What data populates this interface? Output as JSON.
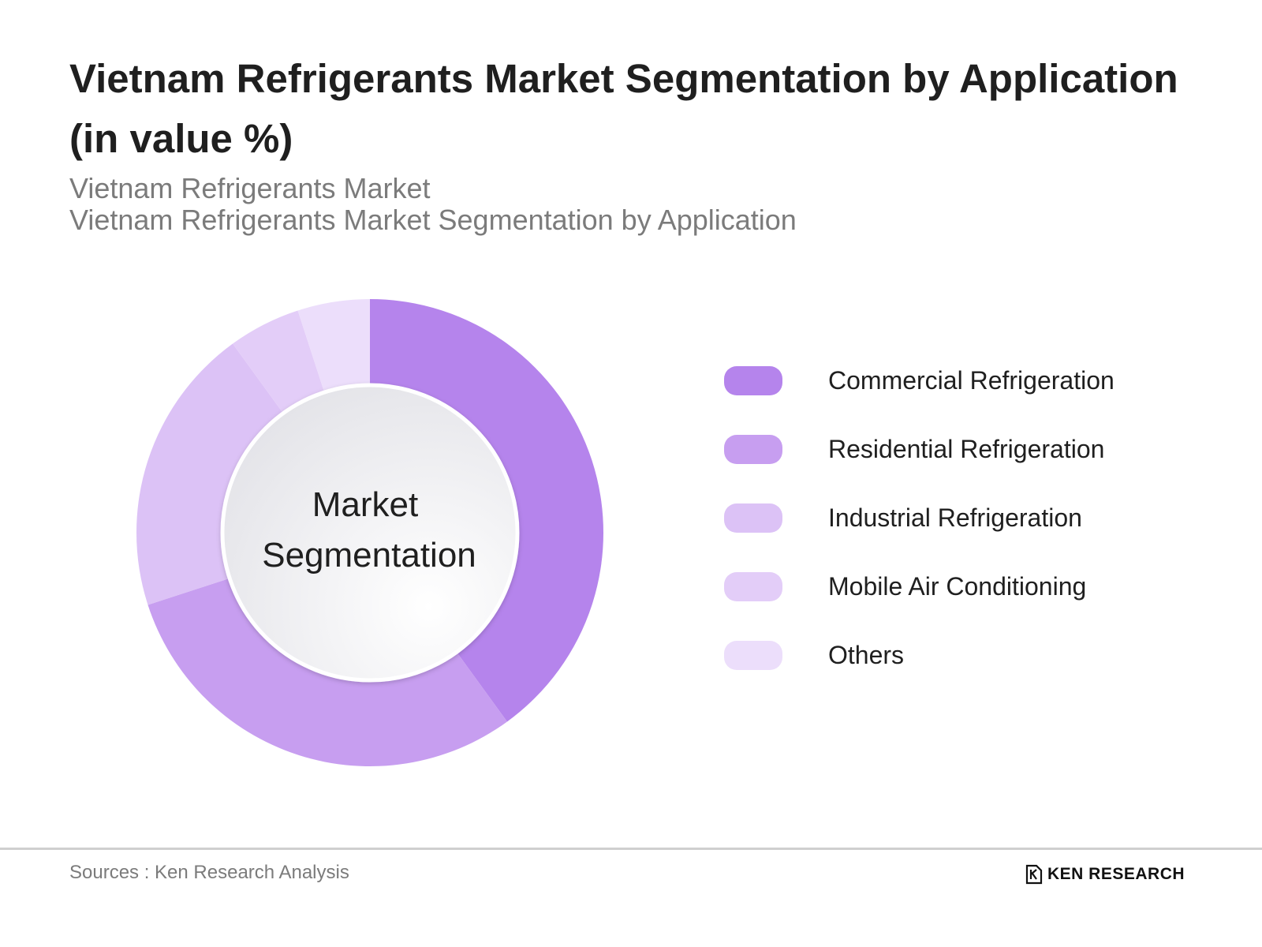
{
  "header": {
    "title": "Vietnam Refrigerants Market Segmentation by Application (in value %)",
    "subtitle_line1": "Vietnam Refrigerants Market",
    "subtitle_line2": "Vietnam Refrigerants Market Segmentation by Application"
  },
  "chart_data": {
    "type": "pie",
    "variant": "donut",
    "center_label_line1": "Market",
    "center_label_line2": "Segmentation",
    "legend_position": "right",
    "categories": [
      "Commercial Refrigeration",
      "Residential Refrigeration",
      "Industrial Refrigeration",
      "Mobile Air Conditioning",
      "Others"
    ],
    "values": [
      40,
      30,
      20,
      5,
      5
    ],
    "colors": [
      "#b584ec",
      "#c79ef0",
      "#dcc2f6",
      "#e3cdf8",
      "#ecdefb"
    ]
  },
  "footer": {
    "source": "Sources : Ken Research Analysis",
    "logo_text": "KEN RESEARCH",
    "logo_icon": "ken-research-logo-icon"
  }
}
